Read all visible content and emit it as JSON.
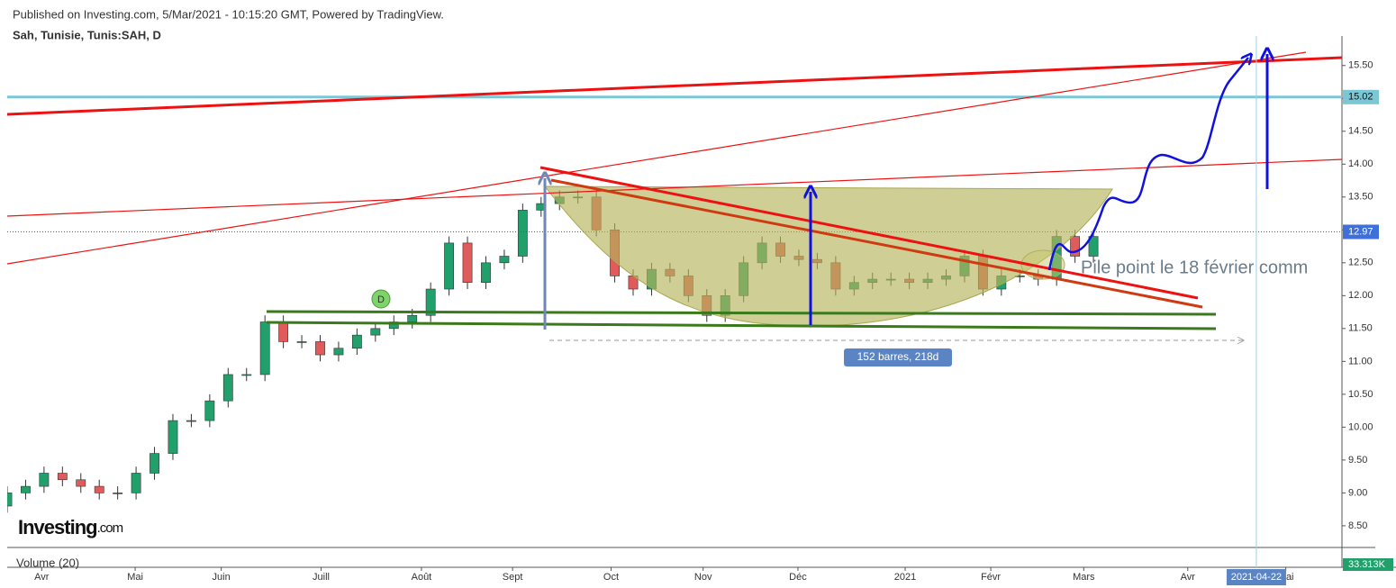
{
  "header": {
    "published": "Published on Investing.com, 5/Mar/2021 - 10:15:20 GMT, Powered by TradingView.",
    "symbol": "Sah, Tunisie, Tunis:SAH, D"
  },
  "logo": {
    "main": "Investing",
    "suffix": ".com"
  },
  "chart_data": {
    "type": "candlestick",
    "x": [
      0,
      4,
      8,
      12,
      16,
      20,
      24,
      28,
      32,
      36,
      40,
      44,
      48,
      52,
      56,
      60,
      64,
      68,
      72,
      76,
      80,
      84,
      88,
      92,
      96,
      100,
      104,
      108,
      112,
      116,
      120,
      124,
      128,
      132,
      136,
      140,
      144,
      148,
      152,
      156,
      160,
      164,
      168,
      172,
      176,
      180,
      184,
      188,
      192,
      196,
      200,
      204,
      208,
      212,
      216,
      220,
      224,
      228,
      232,
      236
    ],
    "open": [
      8.8,
      9.0,
      9.1,
      9.3,
      9.2,
      9.1,
      9.0,
      9.0,
      9.3,
      9.6,
      10.1,
      10.1,
      10.4,
      10.8,
      10.8,
      11.6,
      11.3,
      11.3,
      11.1,
      11.2,
      11.4,
      11.5,
      11.6,
      11.7,
      12.1,
      12.8,
      12.2,
      12.5,
      12.6,
      13.3,
      13.4,
      13.5,
      13.5,
      13.0,
      12.3,
      12.1,
      12.4,
      12.3,
      12.0,
      11.7,
      12.0,
      12.5,
      12.8,
      12.6,
      12.55,
      12.5,
      12.1,
      12.2,
      12.25,
      12.25,
      12.2,
      12.25,
      12.3,
      12.6,
      12.1,
      12.3,
      12.3,
      12.25,
      12.9,
      12.6
    ],
    "high": [
      9.1,
      9.2,
      9.4,
      9.4,
      9.3,
      9.2,
      9.1,
      9.4,
      9.7,
      10.2,
      10.2,
      10.5,
      10.9,
      10.9,
      11.7,
      11.7,
      11.4,
      11.4,
      11.3,
      11.5,
      11.6,
      11.7,
      11.8,
      12.2,
      12.9,
      12.9,
      12.6,
      12.7,
      13.4,
      13.5,
      13.6,
      13.6,
      13.6,
      13.1,
      12.4,
      12.5,
      12.5,
      12.4,
      12.1,
      12.1,
      12.6,
      12.9,
      12.9,
      12.7,
      12.65,
      12.6,
      12.3,
      12.35,
      12.35,
      12.35,
      12.35,
      12.4,
      12.7,
      12.7,
      12.4,
      12.4,
      12.4,
      13.0,
      13.0,
      13.0
    ],
    "low": [
      8.7,
      8.9,
      9.0,
      9.1,
      9.0,
      8.9,
      8.9,
      8.9,
      9.2,
      9.5,
      10.0,
      10.0,
      10.3,
      10.7,
      10.7,
      11.2,
      11.2,
      11.0,
      11.0,
      11.1,
      11.3,
      11.4,
      11.5,
      11.6,
      12.0,
      12.1,
      12.1,
      12.4,
      12.5,
      13.2,
      13.3,
      13.4,
      12.9,
      12.2,
      12.0,
      12.0,
      12.2,
      11.9,
      11.6,
      11.6,
      11.9,
      12.4,
      12.5,
      12.45,
      12.4,
      12.0,
      12.0,
      12.1,
      12.15,
      12.1,
      12.1,
      12.15,
      12.2,
      12.0,
      12.0,
      12.2,
      12.15,
      12.15,
      12.5,
      12.5
    ],
    "close": [
      9.0,
      9.1,
      9.3,
      9.2,
      9.1,
      9.0,
      9.0,
      9.3,
      9.6,
      10.1,
      10.1,
      10.4,
      10.8,
      10.8,
      11.6,
      11.3,
      11.3,
      11.1,
      11.2,
      11.4,
      11.5,
      11.6,
      11.7,
      12.1,
      12.8,
      12.2,
      12.5,
      12.6,
      13.3,
      13.4,
      13.5,
      13.5,
      13.0,
      12.3,
      12.1,
      12.4,
      12.3,
      12.0,
      11.7,
      12.0,
      12.5,
      12.8,
      12.6,
      12.55,
      12.5,
      12.1,
      12.2,
      12.25,
      12.25,
      12.2,
      12.25,
      12.3,
      12.6,
      12.1,
      12.3,
      12.3,
      12.25,
      12.9,
      12.6,
      12.9
    ],
    "up_color": "#22a06b",
    "down_color": "#e25b5b",
    "xlim": [
      0,
      290
    ],
    "xticks": [
      {
        "value": 7.5,
        "label": "Avr"
      },
      {
        "value": 27.8,
        "label": "Mai"
      },
      {
        "value": 46.5,
        "label": "Juin"
      },
      {
        "value": 68.2,
        "label": "Juill"
      },
      {
        "value": 90,
        "label": "Août"
      },
      {
        "value": 109.8,
        "label": "Sept"
      },
      {
        "value": 131.2,
        "label": "Oct"
      },
      {
        "value": 151.2,
        "label": "Nov"
      },
      {
        "value": 171.8,
        "label": "Déc"
      },
      {
        "value": 195.1,
        "label": "2021"
      },
      {
        "value": 213.7,
        "label": "Févr"
      },
      {
        "value": 233.9,
        "label": "Mars"
      },
      {
        "value": 256.5,
        "label": "Avr"
      },
      {
        "value": 277.8,
        "label": "Mai"
      }
    ],
    "ylim": [
      8.17,
      15.88
    ],
    "yticks": [
      {
        "value": 8.5,
        "label": "8.50"
      },
      {
        "value": 9,
        "label": "9.00"
      },
      {
        "value": 9.5,
        "label": "9.50"
      },
      {
        "value": 10,
        "label": "10.00"
      },
      {
        "value": 10.5,
        "label": "10.50"
      },
      {
        "value": 11,
        "label": "11.00"
      },
      {
        "value": 11.5,
        "label": "11.50"
      },
      {
        "value": 12,
        "label": "12.00"
      },
      {
        "value": 12.5,
        "label": "12.50"
      },
      {
        "value": 13,
        "label": "13.00"
      },
      {
        "value": 13.5,
        "label": "13.50"
      },
      {
        "value": 14,
        "label": "14.00"
      },
      {
        "value": 14.5,
        "label": "14.50"
      },
      {
        "value": 15,
        "label": "15.00"
      },
      {
        "value": 15.5,
        "label": "15.50"
      }
    ],
    "last_price": 12.97,
    "level": 15.02,
    "date_marker": {
      "value": 271.4,
      "label": "2021-04-22"
    },
    "annotations": {
      "range": "152 barres, 218d",
      "note": "Pile point le 18 février comm",
      "dividend": "D"
    },
    "volume_label": "Volume (20)",
    "volume_value": "33.313K"
  }
}
